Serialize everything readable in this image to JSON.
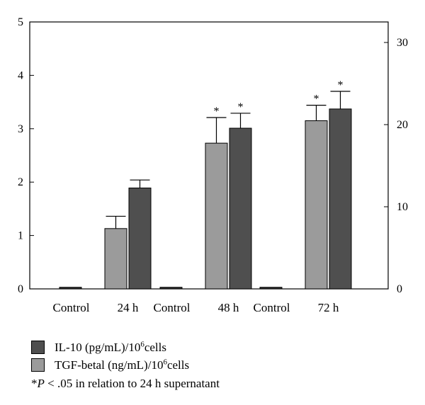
{
  "chart_data": {
    "type": "bar",
    "groups": [
      {
        "control_label": "Control",
        "time_label": "24 h"
      },
      {
        "control_label": "Control",
        "time_label": "48 h"
      },
      {
        "control_label": "Control",
        "time_label": "72 h"
      }
    ],
    "control_value": 0.03,
    "series": [
      {
        "name": "TGF-betal (ng/mL)/10^6cells",
        "axis": "left",
        "color": "#9b9b9b",
        "values": [
          1.13,
          2.73,
          3.15
        ],
        "errors": [
          0.23,
          0.48,
          0.29
        ],
        "significant": [
          false,
          true,
          true
        ]
      },
      {
        "name": "IL-10 (pg/mL)/10^6cells",
        "axis": "left",
        "color": "#4f4f4f",
        "values": [
          1.89,
          3.01,
          3.37
        ],
        "errors": [
          0.15,
          0.28,
          0.33
        ],
        "significant": [
          false,
          true,
          true
        ]
      }
    ],
    "left_axis": {
      "ylim": [
        0,
        5
      ],
      "ticks": [
        "0",
        "1",
        "2",
        "3",
        "4",
        "5"
      ]
    },
    "right_axis": {
      "ylim": [
        0,
        32.5
      ],
      "ticks": [
        "0",
        "10",
        "20",
        "30"
      ]
    },
    "significance_marker": "*"
  },
  "legend": {
    "il10": {
      "text": "IL-10 (pg/mL)/10",
      "sup": "6",
      "suffix": "cells",
      "color": "#4f4f4f"
    },
    "tgf": {
      "text": "TGF-betal (ng/mL)/10",
      "sup": "6",
      "suffix": "cells",
      "color": "#9b9b9b"
    },
    "note": {
      "star": "*",
      "p": "P",
      "rest": " < .05 in relation to 24 h supernatant"
    }
  }
}
